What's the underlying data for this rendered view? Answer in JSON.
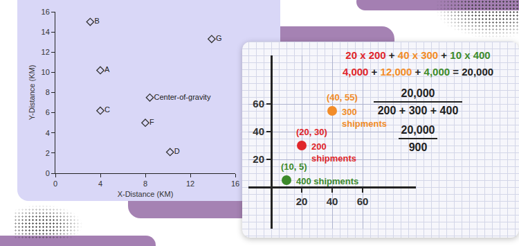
{
  "chart_data": [
    {
      "type": "scatter",
      "x_label": "X-Distance (KM)",
      "y_label": "Y-Distance (KM)",
      "x": [
        3.1,
        4,
        4,
        8.4,
        8,
        10.2,
        13.9
      ],
      "values": [
        15,
        10.2,
        6.2,
        7.5,
        5,
        2.1,
        13.3
      ],
      "point_labels": [
        "B",
        "A",
        "C",
        "Center-of-gravity",
        "F",
        "D",
        "G"
      ],
      "xlim": [
        0,
        16
      ],
      "ylim": [
        0,
        16
      ],
      "xticks": [
        0,
        4,
        8,
        12,
        16
      ],
      "yticks": [
        0,
        2,
        4,
        6,
        8,
        10,
        12,
        14,
        16
      ],
      "grid": false,
      "marker": "diamond-open",
      "color": "#333333"
    },
    {
      "type": "scatter",
      "xlim": [
        -15,
        95
      ],
      "ylim": [
        -30,
        95
      ],
      "xticks": [
        20,
        40,
        60
      ],
      "yticks": [
        20,
        40,
        60
      ],
      "grid": true,
      "marker": "circle",
      "series": [
        {
          "color": "#e0262b",
          "x": [
            20
          ],
          "values": [
            30
          ],
          "point_label": "(20, 30)",
          "note": [
            "200",
            "shipments"
          ]
        },
        {
          "color": "#f28c28",
          "x": [
            40
          ],
          "values": [
            55
          ],
          "point_label": "(40, 55)",
          "note": [
            "300",
            "shipments"
          ]
        },
        {
          "color": "#3d8a2b",
          "x": [
            10
          ],
          "values": [
            5
          ],
          "point_label": "(10, 5)",
          "note": [
            "400 shipments"
          ]
        }
      ],
      "equations": {
        "lines": [
          [
            {
              "text": "20 x 200",
              "color": "#e0262b"
            },
            {
              "text": " + "
            },
            {
              "text": "40 x 300",
              "color": "#f28c28"
            },
            {
              "text": " + "
            },
            {
              "text": "10 x 400",
              "color": "#3d8a2b"
            }
          ],
          [
            {
              "text": "4,000",
              "color": "#e0262b"
            },
            {
              "text": " + "
            },
            {
              "text": "12,000",
              "color": "#f28c28"
            },
            {
              "text": " + "
            },
            {
              "text": "4,000",
              "color": "#3d8a2b"
            },
            {
              "text": " = 20,000"
            }
          ]
        ],
        "fractions": [
          {
            "numerator": "20,000",
            "denominator": "200 + 300 + 400"
          },
          {
            "numerator": "20,000",
            "denominator": "900"
          }
        ]
      }
    }
  ]
}
